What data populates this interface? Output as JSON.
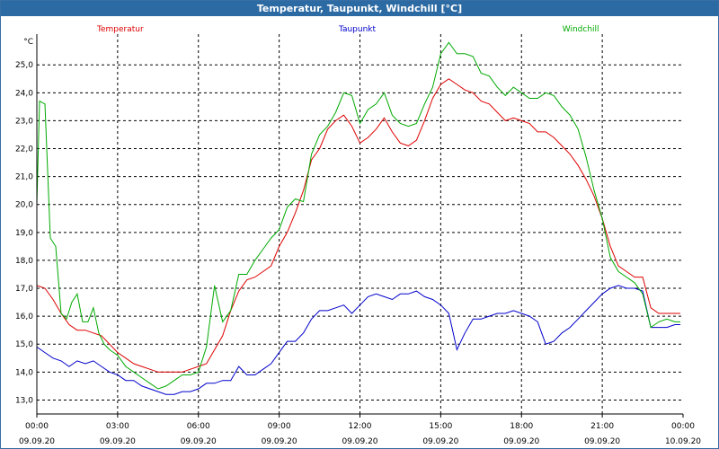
{
  "window": {
    "title": "Temperatur, Taupunkt, Windchill [°C]"
  },
  "chart_data": {
    "type": "line",
    "title": "Temperatur, Taupunkt, Windchill [°C]",
    "ylabel": "°C",
    "ylim": [
      12.5,
      26.1
    ],
    "grid": true,
    "legend_placement": "top",
    "y_ticks": [
      "13,0",
      "14,0",
      "15,0",
      "16,0",
      "17,0",
      "18,0",
      "19,0",
      "20,0",
      "21,0",
      "22,0",
      "23,0",
      "24,0",
      "25,0"
    ],
    "x_ticks": [
      {
        "time": "00:00",
        "date": "09.09.20"
      },
      {
        "time": "03:00",
        "date": "09.09.20"
      },
      {
        "time": "06:00",
        "date": "09.09.20"
      },
      {
        "time": "09:00",
        "date": "09.09.20"
      },
      {
        "time": "12:00",
        "date": "09.09.20"
      },
      {
        "time": "15:00",
        "date": "09.09.20"
      },
      {
        "time": "18:00",
        "date": "09.09.20"
      },
      {
        "time": "21:00",
        "date": "09.09.20"
      },
      {
        "time": "00:00",
        "date": "10.09.20"
      }
    ],
    "x_unit": "hours since 09.09.20 00:00",
    "series": [
      {
        "name": "Temperatur",
        "color": "#dd0000",
        "points": [
          [
            0,
            17.1
          ],
          [
            0.3,
            17.0
          ],
          [
            0.6,
            16.6
          ],
          [
            0.9,
            16.1
          ],
          [
            1.2,
            15.7
          ],
          [
            1.5,
            15.5
          ],
          [
            1.8,
            15.5
          ],
          [
            2.1,
            15.4
          ],
          [
            2.4,
            15.3
          ],
          [
            2.7,
            15.0
          ],
          [
            3.0,
            14.7
          ],
          [
            3.3,
            14.5
          ],
          [
            3.6,
            14.3
          ],
          [
            3.9,
            14.2
          ],
          [
            4.2,
            14.1
          ],
          [
            4.5,
            14.0
          ],
          [
            4.8,
            14.0
          ],
          [
            5.1,
            14.0
          ],
          [
            5.4,
            14.0
          ],
          [
            5.7,
            14.1
          ],
          [
            6.0,
            14.2
          ],
          [
            6.3,
            14.3
          ],
          [
            6.6,
            14.8
          ],
          [
            6.9,
            15.3
          ],
          [
            7.2,
            16.2
          ],
          [
            7.5,
            16.9
          ],
          [
            7.8,
            17.3
          ],
          [
            8.1,
            17.4
          ],
          [
            8.4,
            17.6
          ],
          [
            8.7,
            17.8
          ],
          [
            9.0,
            18.5
          ],
          [
            9.3,
            19.0
          ],
          [
            9.6,
            19.7
          ],
          [
            9.9,
            20.5
          ],
          [
            10.2,
            21.6
          ],
          [
            10.5,
            22.0
          ],
          [
            10.8,
            22.7
          ],
          [
            11.1,
            23.0
          ],
          [
            11.4,
            23.2
          ],
          [
            11.7,
            22.8
          ],
          [
            12.0,
            22.2
          ],
          [
            12.3,
            22.4
          ],
          [
            12.6,
            22.7
          ],
          [
            12.9,
            23.1
          ],
          [
            13.2,
            22.6
          ],
          [
            13.5,
            22.2
          ],
          [
            13.8,
            22.1
          ],
          [
            14.1,
            22.3
          ],
          [
            14.4,
            23.0
          ],
          [
            14.7,
            23.8
          ],
          [
            15.0,
            24.3
          ],
          [
            15.3,
            24.5
          ],
          [
            15.6,
            24.3
          ],
          [
            15.9,
            24.1
          ],
          [
            16.2,
            24.0
          ],
          [
            16.5,
            23.7
          ],
          [
            16.8,
            23.6
          ],
          [
            17.1,
            23.3
          ],
          [
            17.4,
            23.0
          ],
          [
            17.7,
            23.1
          ],
          [
            18.0,
            23.0
          ],
          [
            18.3,
            22.9
          ],
          [
            18.6,
            22.6
          ],
          [
            18.9,
            22.6
          ],
          [
            19.2,
            22.4
          ],
          [
            19.5,
            22.1
          ],
          [
            19.8,
            21.8
          ],
          [
            20.1,
            21.4
          ],
          [
            20.4,
            20.9
          ],
          [
            20.7,
            20.3
          ],
          [
            21.0,
            19.5
          ],
          [
            21.3,
            18.5
          ],
          [
            21.6,
            17.8
          ],
          [
            21.9,
            17.6
          ],
          [
            22.2,
            17.4
          ],
          [
            22.5,
            17.4
          ],
          [
            22.8,
            16.3
          ],
          [
            23.1,
            16.1
          ],
          [
            23.4,
            16.1
          ],
          [
            23.7,
            16.1
          ],
          [
            23.9,
            16.1
          ]
        ]
      },
      {
        "name": "Taupunkt",
        "color": "#0000cc",
        "points": [
          [
            0,
            14.9
          ],
          [
            0.3,
            14.7
          ],
          [
            0.6,
            14.5
          ],
          [
            0.9,
            14.4
          ],
          [
            1.2,
            14.2
          ],
          [
            1.5,
            14.4
          ],
          [
            1.8,
            14.3
          ],
          [
            2.1,
            14.4
          ],
          [
            2.4,
            14.2
          ],
          [
            2.7,
            14.0
          ],
          [
            3.0,
            13.9
          ],
          [
            3.3,
            13.7
          ],
          [
            3.6,
            13.7
          ],
          [
            3.9,
            13.5
          ],
          [
            4.2,
            13.4
          ],
          [
            4.5,
            13.3
          ],
          [
            4.8,
            13.2
          ],
          [
            5.1,
            13.2
          ],
          [
            5.4,
            13.3
          ],
          [
            5.7,
            13.3
          ],
          [
            6.0,
            13.4
          ],
          [
            6.3,
            13.6
          ],
          [
            6.6,
            13.6
          ],
          [
            6.9,
            13.7
          ],
          [
            7.2,
            13.7
          ],
          [
            7.5,
            14.2
          ],
          [
            7.8,
            13.9
          ],
          [
            8.1,
            13.9
          ],
          [
            8.4,
            14.1
          ],
          [
            8.7,
            14.3
          ],
          [
            9.0,
            14.7
          ],
          [
            9.3,
            15.1
          ],
          [
            9.6,
            15.1
          ],
          [
            9.9,
            15.4
          ],
          [
            10.2,
            15.9
          ],
          [
            10.5,
            16.2
          ],
          [
            10.8,
            16.2
          ],
          [
            11.1,
            16.3
          ],
          [
            11.4,
            16.4
          ],
          [
            11.7,
            16.1
          ],
          [
            12.0,
            16.4
          ],
          [
            12.3,
            16.7
          ],
          [
            12.6,
            16.8
          ],
          [
            12.9,
            16.7
          ],
          [
            13.2,
            16.6
          ],
          [
            13.5,
            16.8
          ],
          [
            13.8,
            16.8
          ],
          [
            14.1,
            16.9
          ],
          [
            14.4,
            16.7
          ],
          [
            14.7,
            16.6
          ],
          [
            15.0,
            16.4
          ],
          [
            15.3,
            16.1
          ],
          [
            15.6,
            14.8
          ],
          [
            15.9,
            15.4
          ],
          [
            16.2,
            15.9
          ],
          [
            16.5,
            15.9
          ],
          [
            16.8,
            16.0
          ],
          [
            17.1,
            16.1
          ],
          [
            17.4,
            16.1
          ],
          [
            17.7,
            16.2
          ],
          [
            18.0,
            16.1
          ],
          [
            18.3,
            16.0
          ],
          [
            18.6,
            15.8
          ],
          [
            18.9,
            15.0
          ],
          [
            19.2,
            15.1
          ],
          [
            19.5,
            15.4
          ],
          [
            19.8,
            15.6
          ],
          [
            20.1,
            15.9
          ],
          [
            20.4,
            16.2
          ],
          [
            20.7,
            16.5
          ],
          [
            21.0,
            16.8
          ],
          [
            21.3,
            17.0
          ],
          [
            21.6,
            17.1
          ],
          [
            21.9,
            17.0
          ],
          [
            22.2,
            17.0
          ],
          [
            22.5,
            16.9
          ],
          [
            22.8,
            15.6
          ],
          [
            23.1,
            15.6
          ],
          [
            23.4,
            15.6
          ],
          [
            23.7,
            15.7
          ],
          [
            23.9,
            15.7
          ]
        ]
      },
      {
        "name": "Windchill",
        "color": "#00aa00",
        "points": [
          [
            0,
            20.0
          ],
          [
            0.1,
            23.7
          ],
          [
            0.3,
            23.6
          ],
          [
            0.5,
            18.8
          ],
          [
            0.7,
            18.5
          ],
          [
            0.9,
            16.1
          ],
          [
            1.1,
            15.9
          ],
          [
            1.3,
            16.5
          ],
          [
            1.5,
            16.8
          ],
          [
            1.7,
            15.8
          ],
          [
            1.9,
            15.8
          ],
          [
            2.1,
            16.3
          ],
          [
            2.3,
            15.4
          ],
          [
            2.5,
            15.0
          ],
          [
            2.7,
            14.8
          ],
          [
            3.0,
            14.6
          ],
          [
            3.3,
            14.2
          ],
          [
            3.6,
            14.0
          ],
          [
            3.9,
            13.8
          ],
          [
            4.2,
            13.6
          ],
          [
            4.5,
            13.4
          ],
          [
            4.8,
            13.5
          ],
          [
            5.1,
            13.7
          ],
          [
            5.4,
            13.9
          ],
          [
            5.7,
            13.9
          ],
          [
            6.0,
            14.0
          ],
          [
            6.3,
            14.9
          ],
          [
            6.6,
            17.1
          ],
          [
            6.9,
            15.8
          ],
          [
            7.2,
            16.2
          ],
          [
            7.5,
            17.5
          ],
          [
            7.8,
            17.5
          ],
          [
            8.1,
            18.0
          ],
          [
            8.4,
            18.4
          ],
          [
            8.7,
            18.8
          ],
          [
            9.0,
            19.1
          ],
          [
            9.3,
            19.9
          ],
          [
            9.6,
            20.2
          ],
          [
            9.9,
            20.1
          ],
          [
            10.2,
            21.8
          ],
          [
            10.5,
            22.5
          ],
          [
            10.8,
            22.8
          ],
          [
            11.1,
            23.3
          ],
          [
            11.4,
            24.0
          ],
          [
            11.7,
            23.9
          ],
          [
            12.0,
            22.9
          ],
          [
            12.3,
            23.4
          ],
          [
            12.6,
            23.6
          ],
          [
            12.9,
            24.0
          ],
          [
            13.2,
            23.2
          ],
          [
            13.5,
            22.9
          ],
          [
            13.8,
            22.8
          ],
          [
            14.1,
            22.9
          ],
          [
            14.4,
            23.6
          ],
          [
            14.7,
            24.2
          ],
          [
            15.0,
            25.4
          ],
          [
            15.3,
            25.8
          ],
          [
            15.6,
            25.4
          ],
          [
            15.9,
            25.4
          ],
          [
            16.2,
            25.3
          ],
          [
            16.5,
            24.7
          ],
          [
            16.8,
            24.6
          ],
          [
            17.1,
            24.2
          ],
          [
            17.4,
            23.9
          ],
          [
            17.7,
            24.2
          ],
          [
            18.0,
            24.0
          ],
          [
            18.3,
            23.8
          ],
          [
            18.6,
            23.8
          ],
          [
            18.9,
            24.0
          ],
          [
            19.2,
            23.9
          ],
          [
            19.5,
            23.5
          ],
          [
            19.8,
            23.2
          ],
          [
            20.1,
            22.7
          ],
          [
            20.4,
            21.7
          ],
          [
            20.7,
            20.5
          ],
          [
            21.0,
            19.5
          ],
          [
            21.3,
            18.1
          ],
          [
            21.6,
            17.6
          ],
          [
            21.9,
            17.4
          ],
          [
            22.2,
            17.2
          ],
          [
            22.5,
            16.8
          ],
          [
            22.8,
            15.6
          ],
          [
            23.1,
            15.8
          ],
          [
            23.4,
            15.9
          ],
          [
            23.7,
            15.8
          ],
          [
            23.9,
            15.8
          ]
        ]
      }
    ]
  }
}
